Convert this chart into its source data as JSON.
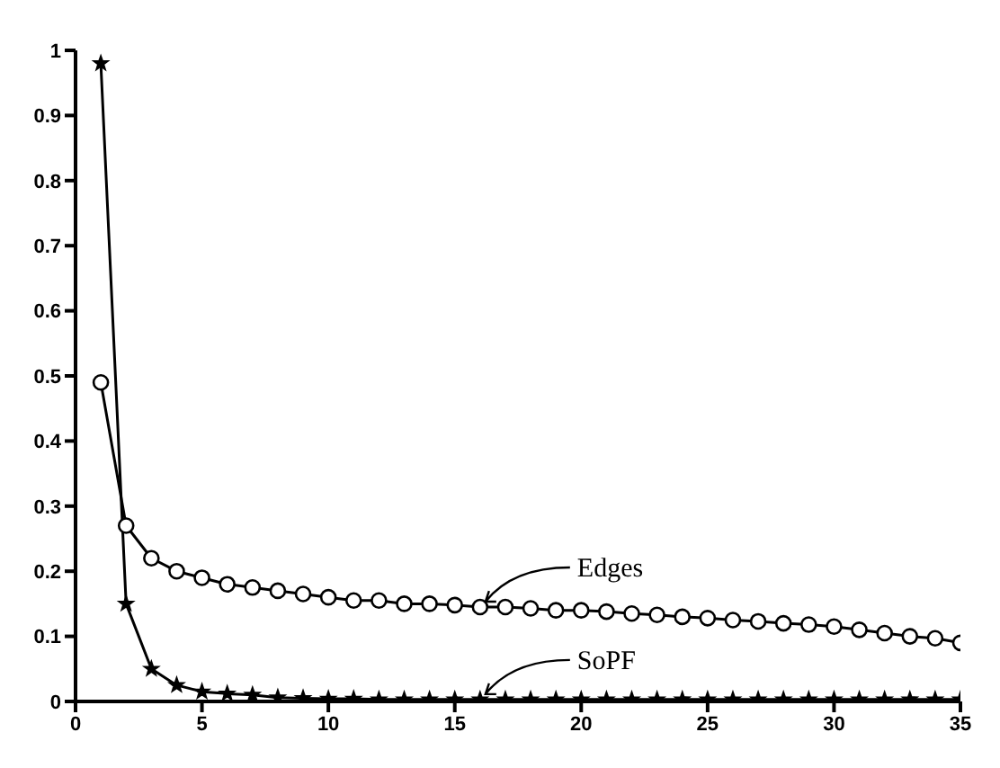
{
  "chart_data": {
    "type": "line",
    "x": [
      1,
      2,
      3,
      4,
      5,
      6,
      7,
      8,
      9,
      10,
      11,
      12,
      13,
      14,
      15,
      16,
      17,
      18,
      19,
      20,
      21,
      22,
      23,
      24,
      25,
      26,
      27,
      28,
      29,
      30,
      31,
      32,
      33,
      34,
      35
    ],
    "series": [
      {
        "name": "Edges",
        "color": "#000000",
        "marker": "circle",
        "values": [
          0.49,
          0.27,
          0.22,
          0.2,
          0.19,
          0.18,
          0.175,
          0.17,
          0.165,
          0.16,
          0.155,
          0.155,
          0.15,
          0.15,
          0.148,
          0.145,
          0.145,
          0.143,
          0.14,
          0.14,
          0.138,
          0.135,
          0.133,
          0.13,
          0.128,
          0.125,
          0.123,
          0.12,
          0.118,
          0.115,
          0.11,
          0.105,
          0.1,
          0.097,
          0.09
        ]
      },
      {
        "name": "SoPF",
        "color": "#000000",
        "marker": "star",
        "values": [
          0.98,
          0.15,
          0.05,
          0.025,
          0.015,
          0.012,
          0.01,
          0.006,
          0.005,
          0.004,
          0.004,
          0.003,
          0.003,
          0.003,
          0.003,
          0.003,
          0.003,
          0.003,
          0.003,
          0.003,
          0.003,
          0.003,
          0.003,
          0.003,
          0.003,
          0.003,
          0.003,
          0.003,
          0.003,
          0.003,
          0.003,
          0.003,
          0.003,
          0.003,
          0.003
        ]
      }
    ],
    "xlim": [
      0,
      35
    ],
    "xticks": [
      0,
      5,
      10,
      15,
      20,
      25,
      30,
      35
    ],
    "ylim": [
      0,
      1
    ],
    "yticks": [
      0,
      0.1,
      0.2,
      0.3,
      0.4,
      0.5,
      0.6,
      0.7,
      0.8,
      0.9,
      1
    ],
    "grid": false,
    "legend": "right",
    "line_style": "solid"
  }
}
